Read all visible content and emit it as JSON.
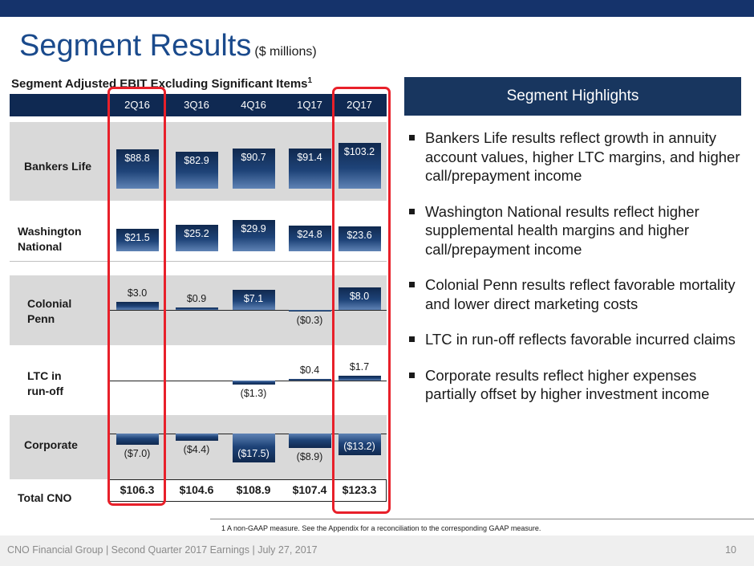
{
  "title": "Segment Results",
  "title_unit": "($ millions)",
  "subtitle": "Segment Adjusted EBIT Excluding Significant Items",
  "subtitle_sup": "1",
  "chart_data": {
    "type": "bar",
    "title": "Segment Adjusted EBIT Excluding Significant Items",
    "categories": [
      "2Q16",
      "3Q16",
      "4Q16",
      "1Q17",
      "2Q17"
    ],
    "series": [
      {
        "name": "Bankers Life",
        "values": [
          88.8,
          82.9,
          90.7,
          91.4,
          103.2
        ],
        "labels": [
          "$88.8",
          "$82.9",
          "$90.7",
          "$91.4",
          "$103.2"
        ]
      },
      {
        "name": "Washington National",
        "values": [
          21.5,
          25.2,
          29.9,
          24.8,
          23.6
        ],
        "labels": [
          "$21.5",
          "$25.2",
          "$29.9",
          "$24.8",
          "$23.6"
        ]
      },
      {
        "name": "Colonial Penn",
        "values": [
          3.0,
          0.9,
          7.1,
          -0.3,
          8.0
        ],
        "labels": [
          "$3.0",
          "$0.9",
          "$7.1",
          "($0.3)",
          "$8.0"
        ]
      },
      {
        "name": "LTC in run-off",
        "values": [
          null,
          null,
          -1.3,
          0.4,
          1.7
        ],
        "labels": [
          "",
          "",
          "($1.3)",
          "$0.4",
          "$1.7"
        ]
      },
      {
        "name": "Corporate",
        "values": [
          -7.0,
          -4.4,
          -17.5,
          -8.9,
          -13.2
        ],
        "labels": [
          "($7.0)",
          "($4.4)",
          "($17.5)",
          "($8.9)",
          "($13.2)"
        ]
      }
    ],
    "totals_label": "Total CNO",
    "totals": [
      106.3,
      104.6,
      108.9,
      107.4,
      123.3
    ],
    "totals_labels": [
      "$106.3",
      "$104.6",
      "$108.9",
      "$107.4",
      "$123.3"
    ],
    "highlighted_categories": [
      "2Q16",
      "2Q17"
    ],
    "highlight_color": "#e8202a",
    "bar_color": "#1e4378"
  },
  "row_labels": {
    "bankers": "Bankers Life",
    "wn_1": "Washington",
    "wn_2": "National",
    "cp_1": "Colonial",
    "cp_2": "Penn",
    "ltc_1": "LTC in",
    "ltc_2": "run-off",
    "corp": "Corporate",
    "total": "Total CNO"
  },
  "highlights": {
    "header": "Segment Highlights",
    "items": [
      "Bankers Life results reflect growth in annuity account values, higher LTC margins, and higher call/prepayment income",
      "Washington National results reflect higher supplemental health margins and higher call/prepayment income",
      "Colonial Penn results reflect favorable mortality and lower direct marketing costs",
      "LTC in run-off reflects favorable incurred claims",
      "Corporate results reflect higher expenses partially offset by higher investment income"
    ]
  },
  "footnote": "1    A non-GAAP measure.  See the Appendix for a reconciliation to the corresponding GAAP measure.",
  "footer": {
    "text": "CNO Financial Group | Second Quarter 2017 Earnings | July 27, 2017",
    "page_number": "10"
  },
  "colors": {
    "top_bar": "#15336b",
    "title": "#1a4a8c",
    "header_fill": "#0f2952"
  }
}
